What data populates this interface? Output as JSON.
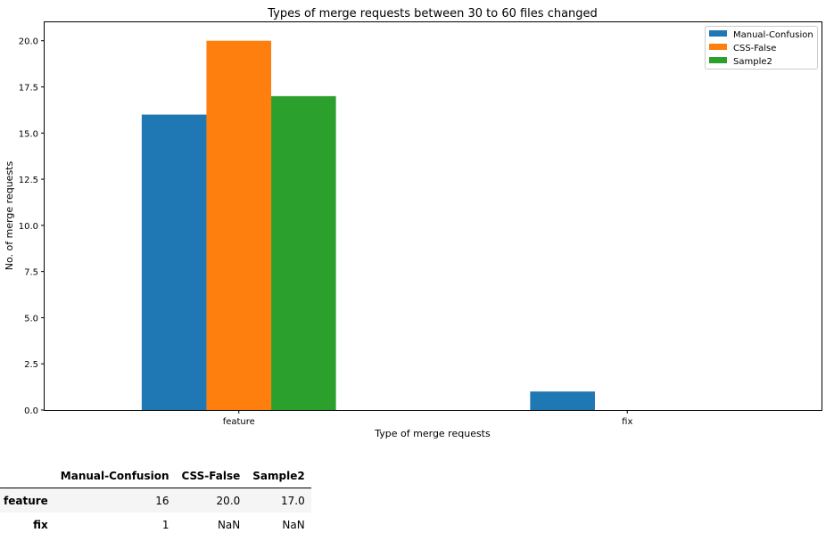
{
  "chart_data": {
    "type": "bar",
    "title": "Types of merge requests between 30 to 60 files changed",
    "xlabel": "Type of merge requests",
    "ylabel": "No. of merge requests",
    "categories": [
      "feature",
      "fix"
    ],
    "series": [
      {
        "name": "Manual-Confusion",
        "color": "#1f77b4",
        "values": [
          16,
          1
        ]
      },
      {
        "name": "CSS-False",
        "color": "#ff7f0e",
        "values": [
          20,
          null
        ]
      },
      {
        "name": "Sample2",
        "color": "#2ca02c",
        "values": [
          17,
          null
        ]
      }
    ],
    "ylim": [
      0,
      21
    ],
    "yticks": [
      "0.0",
      "2.5",
      "5.0",
      "7.5",
      "10.0",
      "12.5",
      "15.0",
      "17.5",
      "20.0"
    ],
    "legend_position": "top-right",
    "grid": false
  },
  "table": {
    "columns": [
      "Manual-Confusion",
      "CSS-False",
      "Sample2"
    ],
    "rows": [
      {
        "index": "feature",
        "cells": [
          "16",
          "20.0",
          "17.0"
        ]
      },
      {
        "index": "fix",
        "cells": [
          "1",
          "NaN",
          "NaN"
        ]
      }
    ]
  }
}
